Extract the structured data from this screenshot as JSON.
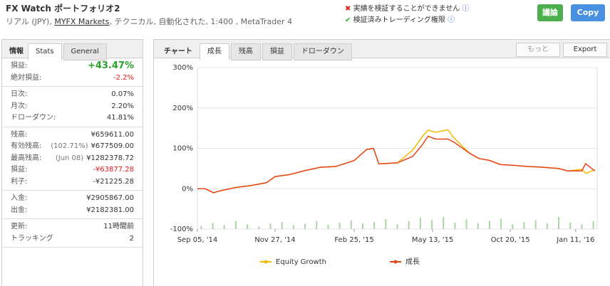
{
  "header": {
    "title": "FX Watch ポートフォリオ2",
    "subtitle": [
      "リアル (JPY), ",
      "MYFX Markets",
      ", テクニカル, 自動化された, 1:400 , MetaTrader 4"
    ],
    "status": [
      "実績を検証することができません",
      "検証済みトレーディング権限"
    ],
    "buttons": [
      "議論",
      "Copy"
    ]
  },
  "left": {
    "tabs": [
      "情報",
      "Stats",
      "General"
    ],
    "groups": [
      [
        {
          "label": "損益:",
          "value": "+43.47%",
          "tone": "gain"
        },
        {
          "label": "絶対損益:",
          "value": "-2.2%",
          "tone": "loss"
        }
      ],
      [
        {
          "label": "日次:",
          "value": "0.07%"
        },
        {
          "label": "月次:",
          "value": "2.20%"
        },
        {
          "label": "ドローダウン:",
          "value": "41.81%"
        }
      ],
      [
        {
          "label": "残高:",
          "value": "¥659611.00"
        },
        {
          "label": "有効残高:",
          "note": "(102.71%)",
          "value": "¥677509.00"
        },
        {
          "label": "最高残高:",
          "note": "(Jun 08)",
          "value": "¥1282378.72"
        },
        {
          "label": "損益:",
          "value": "-¥63877.28",
          "tone": "loss"
        },
        {
          "label": "利子:",
          "value": "-¥21225.28"
        }
      ],
      [
        {
          "label": "入金:",
          "value": "¥2905867.00"
        },
        {
          "label": "出金:",
          "value": "¥2182381.00"
        }
      ],
      [
        {
          "label": "更新:",
          "value": "11時間前"
        },
        {
          "label": "トラッキング",
          "value": "2"
        }
      ]
    ]
  },
  "chart_tabs": {
    "label": "チャート",
    "tabs": [
      "成長",
      "残高",
      "損益",
      "ドローダウン"
    ],
    "buttons": [
      "もっと",
      "Export"
    ]
  },
  "chart_data": {
    "type": "line",
    "x": [
      0,
      10,
      21,
      30,
      50,
      70,
      90,
      101,
      120,
      140,
      160,
      180,
      204,
      220,
      229,
      236,
      241,
      260,
      280,
      293,
      300,
      310,
      326,
      334,
      354,
      366,
      380,
      394,
      411,
      430,
      450,
      470,
      482,
      500,
      505,
      517
    ],
    "series": [
      {
        "name": "Equity Growth",
        "color": "#f5b800",
        "values": [
          0,
          0,
          -10,
          -5,
          3,
          8,
          15,
          30,
          35,
          45,
          53,
          55,
          70,
          97,
          100,
          62,
          62,
          64,
          95,
          130,
          145,
          140,
          146,
          125,
          88,
          75,
          70,
          60,
          58,
          55,
          53,
          50,
          44,
          48,
          38,
          47
        ]
      },
      {
        "name": "成長",
        "color": "#e8441a",
        "values": [
          0,
          0,
          -10,
          -5,
          3,
          8,
          15,
          30,
          35,
          45,
          53,
          55,
          70,
          97,
          100,
          62,
          62,
          64,
          80,
          110,
          130,
          123,
          123,
          115,
          88,
          75,
          70,
          60,
          58,
          55,
          53,
          50,
          44,
          44,
          62,
          44
        ]
      }
    ],
    "bars": {
      "color": "#a8d8a0",
      "x": [
        5,
        20,
        35,
        50,
        65,
        80,
        95,
        110,
        125,
        140,
        155,
        170,
        185,
        200,
        215,
        230,
        245,
        260,
        275,
        290,
        305,
        320,
        335,
        350,
        365,
        380,
        395,
        410,
        425,
        440,
        455,
        470,
        485,
        500,
        515
      ],
      "values": [
        -92,
        -85,
        -90,
        -80,
        -88,
        -93,
        -86,
        -82,
        -90,
        -87,
        -80,
        -89,
        -84,
        -78,
        -86,
        -82,
        -75,
        -88,
        -80,
        -72,
        -78,
        -70,
        -84,
        -76,
        -86,
        -80,
        -74,
        -88,
        -82,
        -78,
        -86,
        -70,
        -84,
        -88,
        -80
      ]
    },
    "xlim": [
      0,
      520
    ],
    "xticks": [
      {
        "value": 0,
        "label": "Sep 05, '14"
      },
      {
        "value": 101,
        "label": "Nov 27, '14"
      },
      {
        "value": 204,
        "label": "Feb 25, '15"
      },
      {
        "value": 306,
        "label": "May 13, '15"
      },
      {
        "value": 407,
        "label": "Oct 20, '15"
      },
      {
        "value": 492,
        "label": "Jan 11, '16"
      }
    ],
    "ylim": [
      -100,
      300
    ],
    "yticks": [
      {
        "value": -100,
        "label": "-100%"
      },
      {
        "value": 0,
        "label": "0%"
      },
      {
        "value": 100,
        "label": "100%"
      },
      {
        "value": 200,
        "label": "200%"
      },
      {
        "value": 300,
        "label": "300%"
      }
    ],
    "grid": true
  }
}
